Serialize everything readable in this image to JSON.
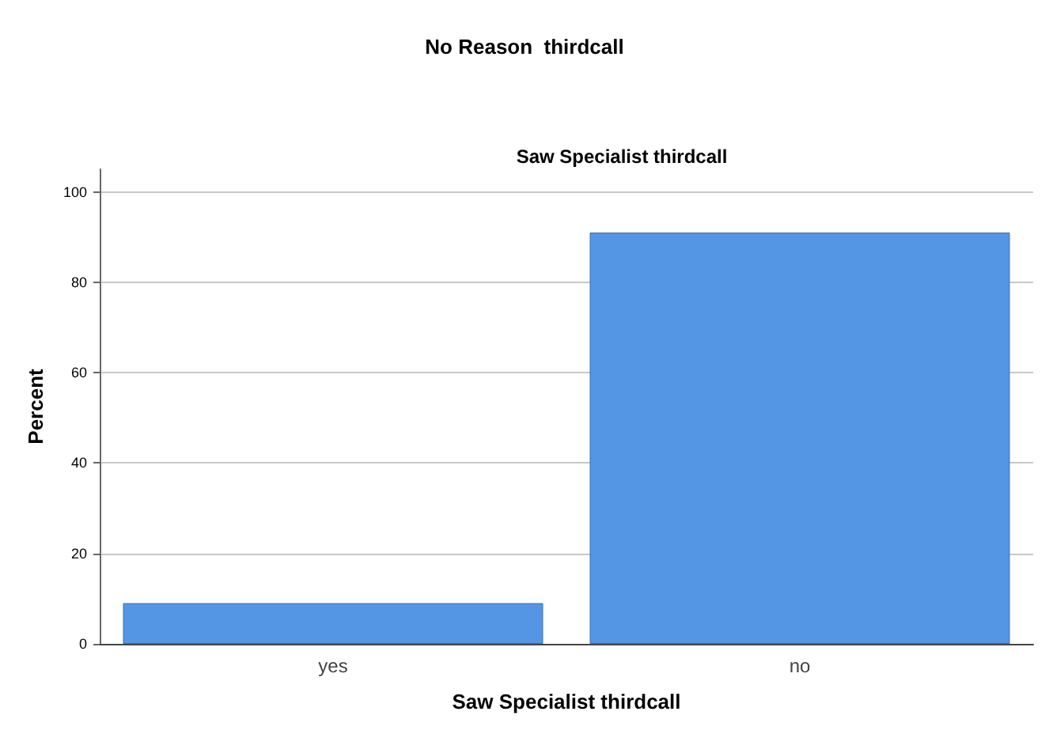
{
  "chart_data": {
    "type": "bar",
    "title": "No Reason  thirdcall",
    "subtitle": "Saw Specialist thirdcall",
    "xlabel": "Saw Specialist thirdcall",
    "ylabel": "Percent",
    "categories": [
      "yes",
      "no"
    ],
    "values": [
      9,
      91
    ],
    "color": "#5596e4",
    "ylim": [
      0,
      105
    ],
    "yticks": [
      0,
      20,
      40,
      60,
      80,
      100
    ],
    "grid": "y"
  }
}
